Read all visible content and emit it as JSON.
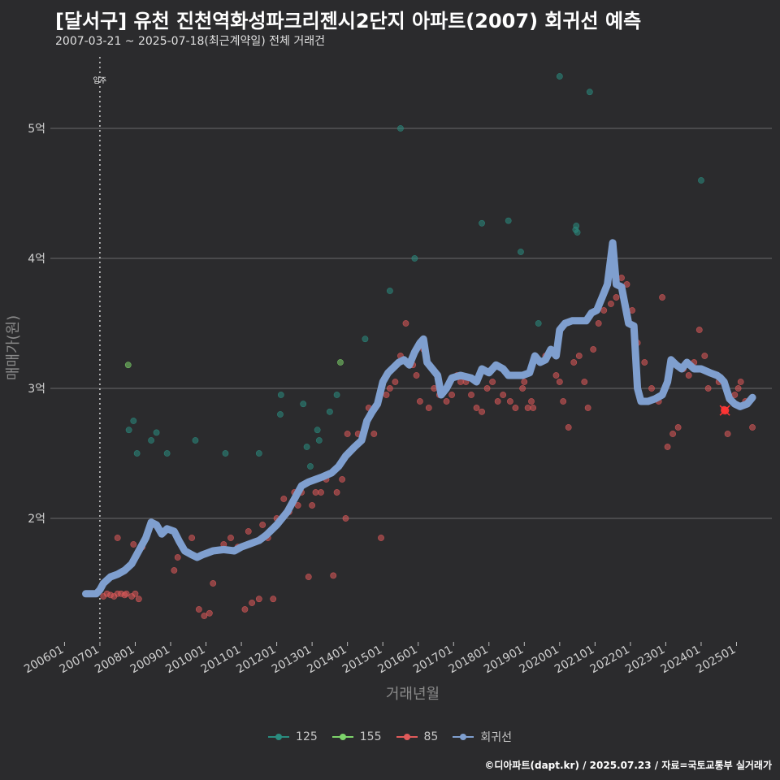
{
  "header": {
    "title": "[달서구] 유천 진천역화성파크리젠시2단지 아파트(2007) 회귀선 예측",
    "subtitle": "2007-03-21 ~ 2025-07-18(최근계약일) 전체 거래건"
  },
  "footer": {
    "credit": "©디아파트(dapt.kr) / 2025.07.23 / 자료=국토교통부 실거래가"
  },
  "colors": {
    "s125": "#2a8c7f",
    "s155": "#7dd36a",
    "s85": "#e05a5a",
    "reg": "#7f9fcf",
    "grid": "#6a6a6a",
    "bg": "#2b2b2d"
  },
  "chart_data": {
    "type": "scatter",
    "title": "[달서구] 유천 진천역화성파크리젠시2단지 아파트(2007) 회귀선 예측",
    "xlabel": "거래년월",
    "ylabel": "매매가(원)",
    "x_unit": "year (decimal)",
    "y_unit": "억원",
    "xlim": [
      2005.6,
      2026.0
    ],
    "ylim": [
      1.05,
      5.55
    ],
    "x_ticks": [
      2006,
      2007,
      2008,
      2009,
      2010,
      2011,
      2012,
      2013,
      2014,
      2015,
      2016,
      2017,
      2018,
      2019,
      2020,
      2021,
      2022,
      2023,
      2024,
      2025
    ],
    "x_tick_labels": [
      "200601",
      "200701",
      "200801",
      "200901",
      "201001",
      "201101",
      "201201",
      "201301",
      "201401",
      "201501",
      "201601",
      "201701",
      "201801",
      "201901",
      "202001",
      "202101",
      "202201",
      "202301",
      "202401",
      "202501"
    ],
    "y_ticks": [
      2,
      3,
      4,
      5
    ],
    "y_tick_labels": [
      "2억",
      "3억",
      "4억",
      "5억"
    ],
    "annotation": {
      "label": "입주",
      "x": 2007.0
    },
    "highlight_point": {
      "x": 2024.67,
      "y": 2.83
    },
    "legend": [
      "125",
      "155",
      "85",
      "회귀선"
    ],
    "series": [
      {
        "name": "125",
        "type": "scatter",
        "points": [
          [
            2007.82,
            2.68
          ],
          [
            2007.95,
            2.75
          ],
          [
            2008.05,
            2.5
          ],
          [
            2008.45,
            2.6
          ],
          [
            2008.6,
            2.66
          ],
          [
            2008.9,
            2.5
          ],
          [
            2009.7,
            2.6
          ],
          [
            2010.55,
            2.5
          ],
          [
            2011.5,
            2.5
          ],
          [
            2012.1,
            2.8
          ],
          [
            2012.12,
            2.95
          ],
          [
            2012.75,
            2.88
          ],
          [
            2012.85,
            2.55
          ],
          [
            2012.95,
            2.4
          ],
          [
            2013.15,
            2.68
          ],
          [
            2013.2,
            2.6
          ],
          [
            2013.5,
            2.82
          ],
          [
            2013.7,
            2.95
          ],
          [
            2014.5,
            3.38
          ],
          [
            2015.2,
            3.75
          ],
          [
            2015.5,
            5.0
          ],
          [
            2015.9,
            4.0
          ],
          [
            2017.8,
            4.27
          ],
          [
            2018.55,
            4.29
          ],
          [
            2018.9,
            4.05
          ],
          [
            2019.4,
            3.5
          ],
          [
            2020.0,
            5.4
          ],
          [
            2020.45,
            4.22
          ],
          [
            2020.47,
            4.25
          ],
          [
            2020.5,
            4.2
          ],
          [
            2020.85,
            5.28
          ],
          [
            2024.0,
            4.6
          ]
        ]
      },
      {
        "name": "155",
        "type": "scatter",
        "points": [
          [
            2007.8,
            3.18
          ],
          [
            2013.8,
            3.2
          ]
        ]
      },
      {
        "name": "85",
        "type": "scatter",
        "points": [
          [
            2007.1,
            1.4
          ],
          [
            2007.2,
            1.42
          ],
          [
            2007.3,
            1.41
          ],
          [
            2007.4,
            1.4
          ],
          [
            2007.5,
            1.42
          ],
          [
            2007.6,
            1.42
          ],
          [
            2007.7,
            1.41
          ],
          [
            2007.75,
            1.42
          ],
          [
            2007.9,
            1.4
          ],
          [
            2008.0,
            1.42
          ],
          [
            2008.1,
            1.38
          ],
          [
            2007.5,
            1.85
          ],
          [
            2007.95,
            1.8
          ],
          [
            2008.2,
            1.78
          ],
          [
            2008.5,
            1.95
          ],
          [
            2008.8,
            1.9
          ],
          [
            2009.1,
            1.6
          ],
          [
            2009.2,
            1.7
          ],
          [
            2009.4,
            1.75
          ],
          [
            2009.6,
            1.85
          ],
          [
            2009.8,
            1.3
          ],
          [
            2009.95,
            1.25
          ],
          [
            2010.1,
            1.27
          ],
          [
            2010.2,
            1.5
          ],
          [
            2010.3,
            1.75
          ],
          [
            2010.5,
            1.8
          ],
          [
            2010.7,
            1.85
          ],
          [
            2010.9,
            1.78
          ],
          [
            2011.1,
            1.3
          ],
          [
            2011.2,
            1.9
          ],
          [
            2011.3,
            1.35
          ],
          [
            2011.5,
            1.38
          ],
          [
            2011.6,
            1.95
          ],
          [
            2011.75,
            1.85
          ],
          [
            2011.9,
            1.38
          ],
          [
            2012.0,
            2.0
          ],
          [
            2012.2,
            2.15
          ],
          [
            2012.35,
            2.05
          ],
          [
            2012.5,
            2.2
          ],
          [
            2012.6,
            2.1
          ],
          [
            2012.7,
            2.2
          ],
          [
            2012.9,
            1.55
          ],
          [
            2013.0,
            2.1
          ],
          [
            2013.1,
            2.2
          ],
          [
            2013.25,
            2.2
          ],
          [
            2013.4,
            2.3
          ],
          [
            2013.6,
            1.56
          ],
          [
            2013.7,
            2.2
          ],
          [
            2013.85,
            2.3
          ],
          [
            2013.95,
            2.0
          ],
          [
            2014.0,
            2.65
          ],
          [
            2014.3,
            2.65
          ],
          [
            2014.6,
            2.85
          ],
          [
            2014.75,
            2.65
          ],
          [
            2014.95,
            1.85
          ],
          [
            2015.1,
            2.95
          ],
          [
            2015.2,
            3.0
          ],
          [
            2015.35,
            3.05
          ],
          [
            2015.5,
            3.25
          ],
          [
            2015.65,
            3.5
          ],
          [
            2015.75,
            3.2
          ],
          [
            2015.85,
            3.18
          ],
          [
            2015.95,
            3.1
          ],
          [
            2016.05,
            2.9
          ],
          [
            2016.15,
            3.3
          ],
          [
            2016.3,
            2.85
          ],
          [
            2016.45,
            3.0
          ],
          [
            2016.6,
            2.95
          ],
          [
            2016.8,
            2.9
          ],
          [
            2016.95,
            2.95
          ],
          [
            2017.1,
            3.1
          ],
          [
            2017.2,
            3.05
          ],
          [
            2017.35,
            3.05
          ],
          [
            2017.5,
            2.95
          ],
          [
            2017.65,
            2.85
          ],
          [
            2017.8,
            2.82
          ],
          [
            2017.95,
            3.0
          ],
          [
            2018.1,
            3.05
          ],
          [
            2018.25,
            2.9
          ],
          [
            2018.4,
            2.95
          ],
          [
            2018.6,
            2.9
          ],
          [
            2018.75,
            2.85
          ],
          [
            2018.95,
            3.0
          ],
          [
            2019.0,
            3.05
          ],
          [
            2019.1,
            2.85
          ],
          [
            2019.2,
            2.9
          ],
          [
            2019.25,
            2.85
          ],
          [
            2019.45,
            3.2
          ],
          [
            2019.6,
            3.25
          ],
          [
            2019.75,
            3.3
          ],
          [
            2019.9,
            3.1
          ],
          [
            2020.0,
            3.05
          ],
          [
            2020.1,
            2.9
          ],
          [
            2020.25,
            2.7
          ],
          [
            2020.4,
            3.2
          ],
          [
            2020.55,
            3.25
          ],
          [
            2020.7,
            3.05
          ],
          [
            2020.8,
            2.85
          ],
          [
            2020.95,
            3.3
          ],
          [
            2021.1,
            3.5
          ],
          [
            2021.25,
            3.6
          ],
          [
            2021.35,
            3.8
          ],
          [
            2021.45,
            3.65
          ],
          [
            2021.6,
            3.7
          ],
          [
            2021.75,
            3.85
          ],
          [
            2021.9,
            3.8
          ],
          [
            2022.05,
            3.6
          ],
          [
            2022.2,
            3.35
          ],
          [
            2022.4,
            3.2
          ],
          [
            2022.6,
            3.0
          ],
          [
            2022.8,
            2.9
          ],
          [
            2022.9,
            3.7
          ],
          [
            2023.05,
            2.55
          ],
          [
            2023.2,
            2.65
          ],
          [
            2023.35,
            2.7
          ],
          [
            2023.5,
            3.15
          ],
          [
            2023.65,
            3.1
          ],
          [
            2023.8,
            3.2
          ],
          [
            2023.95,
            3.45
          ],
          [
            2024.1,
            3.25
          ],
          [
            2024.2,
            3.0
          ],
          [
            2024.5,
            3.05
          ],
          [
            2024.65,
            2.84
          ],
          [
            2024.7,
            2.83
          ],
          [
            2024.75,
            2.65
          ],
          [
            2024.95,
            2.95
          ],
          [
            2025.05,
            3.0
          ],
          [
            2025.12,
            3.05
          ],
          [
            2025.25,
            2.9
          ],
          [
            2025.45,
            2.7
          ]
        ]
      },
      {
        "name": "회귀선",
        "type": "line",
        "points": [
          [
            2006.6,
            1.42
          ],
          [
            2006.9,
            1.42
          ],
          [
            2007.0,
            1.45
          ],
          [
            2007.1,
            1.5
          ],
          [
            2007.3,
            1.55
          ],
          [
            2007.5,
            1.57
          ],
          [
            2007.7,
            1.6
          ],
          [
            2007.9,
            1.65
          ],
          [
            2008.1,
            1.75
          ],
          [
            2008.3,
            1.85
          ],
          [
            2008.45,
            1.97
          ],
          [
            2008.6,
            1.95
          ],
          [
            2008.75,
            1.88
          ],
          [
            2008.9,
            1.92
          ],
          [
            2009.1,
            1.9
          ],
          [
            2009.25,
            1.82
          ],
          [
            2009.4,
            1.75
          ],
          [
            2009.6,
            1.72
          ],
          [
            2009.75,
            1.7
          ],
          [
            2009.9,
            1.72
          ],
          [
            2010.2,
            1.75
          ],
          [
            2010.5,
            1.76
          ],
          [
            2010.8,
            1.75
          ],
          [
            2011.0,
            1.78
          ],
          [
            2011.2,
            1.8
          ],
          [
            2011.5,
            1.83
          ],
          [
            2011.7,
            1.87
          ],
          [
            2012.0,
            1.95
          ],
          [
            2012.3,
            2.05
          ],
          [
            2012.5,
            2.15
          ],
          [
            2012.7,
            2.25
          ],
          [
            2012.9,
            2.28
          ],
          [
            2013.1,
            2.3
          ],
          [
            2013.3,
            2.32
          ],
          [
            2013.55,
            2.35
          ],
          [
            2013.75,
            2.4
          ],
          [
            2013.95,
            2.48
          ],
          [
            2014.2,
            2.55
          ],
          [
            2014.4,
            2.6
          ],
          [
            2014.55,
            2.75
          ],
          [
            2014.7,
            2.82
          ],
          [
            2014.85,
            2.88
          ],
          [
            2015.0,
            3.05
          ],
          [
            2015.15,
            3.12
          ],
          [
            2015.3,
            3.16
          ],
          [
            2015.45,
            3.2
          ],
          [
            2015.6,
            3.22
          ],
          [
            2015.75,
            3.18
          ],
          [
            2015.9,
            3.28
          ],
          [
            2016.05,
            3.35
          ],
          [
            2016.15,
            3.38
          ],
          [
            2016.25,
            3.2
          ],
          [
            2016.4,
            3.15
          ],
          [
            2016.55,
            3.1
          ],
          [
            2016.65,
            2.95
          ],
          [
            2016.8,
            3.0
          ],
          [
            2016.95,
            3.08
          ],
          [
            2017.2,
            3.1
          ],
          [
            2017.5,
            3.08
          ],
          [
            2017.65,
            3.05
          ],
          [
            2017.8,
            3.15
          ],
          [
            2018.0,
            3.12
          ],
          [
            2018.2,
            3.18
          ],
          [
            2018.4,
            3.15
          ],
          [
            2018.55,
            3.1
          ],
          [
            2018.75,
            3.1
          ],
          [
            2018.95,
            3.1
          ],
          [
            2019.15,
            3.12
          ],
          [
            2019.3,
            3.25
          ],
          [
            2019.45,
            3.2
          ],
          [
            2019.6,
            3.22
          ],
          [
            2019.75,
            3.3
          ],
          [
            2019.9,
            3.25
          ],
          [
            2020.0,
            3.45
          ],
          [
            2020.15,
            3.5
          ],
          [
            2020.35,
            3.52
          ],
          [
            2020.55,
            3.52
          ],
          [
            2020.75,
            3.52
          ],
          [
            2020.9,
            3.58
          ],
          [
            2021.05,
            3.6
          ],
          [
            2021.2,
            3.7
          ],
          [
            2021.35,
            3.8
          ],
          [
            2021.5,
            4.12
          ],
          [
            2021.6,
            3.8
          ],
          [
            2021.75,
            3.78
          ],
          [
            2021.95,
            3.5
          ],
          [
            2022.1,
            3.48
          ],
          [
            2022.2,
            3.0
          ],
          [
            2022.3,
            2.9
          ],
          [
            2022.5,
            2.9
          ],
          [
            2022.7,
            2.92
          ],
          [
            2022.9,
            2.95
          ],
          [
            2023.05,
            3.05
          ],
          [
            2023.15,
            3.22
          ],
          [
            2023.3,
            3.18
          ],
          [
            2023.45,
            3.15
          ],
          [
            2023.6,
            3.2
          ],
          [
            2023.8,
            3.15
          ],
          [
            2024.0,
            3.15
          ],
          [
            2024.25,
            3.12
          ],
          [
            2024.45,
            3.1
          ],
          [
            2024.55,
            3.08
          ],
          [
            2024.65,
            3.05
          ],
          [
            2024.8,
            2.92
          ],
          [
            2024.95,
            2.88
          ],
          [
            2025.1,
            2.86
          ],
          [
            2025.3,
            2.88
          ],
          [
            2025.45,
            2.93
          ]
        ]
      }
    ]
  }
}
